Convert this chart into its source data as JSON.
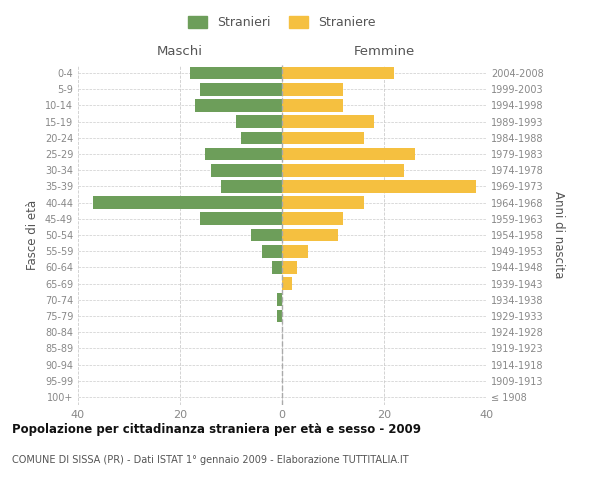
{
  "age_groups": [
    "100+",
    "95-99",
    "90-94",
    "85-89",
    "80-84",
    "75-79",
    "70-74",
    "65-69",
    "60-64",
    "55-59",
    "50-54",
    "45-49",
    "40-44",
    "35-39",
    "30-34",
    "25-29",
    "20-24",
    "15-19",
    "10-14",
    "5-9",
    "0-4"
  ],
  "birth_years": [
    "≤ 1908",
    "1909-1913",
    "1914-1918",
    "1919-1923",
    "1924-1928",
    "1929-1933",
    "1934-1938",
    "1939-1943",
    "1944-1948",
    "1949-1953",
    "1954-1958",
    "1959-1963",
    "1964-1968",
    "1969-1973",
    "1974-1978",
    "1979-1983",
    "1984-1988",
    "1989-1993",
    "1994-1998",
    "1999-2003",
    "2004-2008"
  ],
  "maschi": [
    0,
    0,
    0,
    0,
    0,
    1,
    1,
    0,
    2,
    4,
    6,
    16,
    37,
    12,
    14,
    15,
    8,
    9,
    17,
    16,
    18
  ],
  "femmine": [
    0,
    0,
    0,
    0,
    0,
    0,
    0,
    2,
    3,
    5,
    11,
    12,
    16,
    38,
    24,
    26,
    16,
    18,
    12,
    12,
    22
  ],
  "maschi_color": "#6d9e5a",
  "femmine_color": "#f5c040",
  "bar_height": 0.78,
  "xlim": 40,
  "title": "Popolazione per cittadinanza straniera per età e sesso - 2009",
  "subtitle": "COMUNE DI SISSA (PR) - Dati ISTAT 1° gennaio 2009 - Elaborazione TUTTITALIA.IT",
  "xlabel_left": "Maschi",
  "xlabel_right": "Femmine",
  "ylabel_left": "Fasce di età",
  "ylabel_right": "Anni di nascita",
  "legend_stranieri": "Stranieri",
  "legend_straniere": "Straniere",
  "background_color": "#ffffff",
  "grid_color": "#cccccc",
  "axis_label_color": "#555555",
  "tick_label_color": "#888888",
  "title_color": "#111111"
}
